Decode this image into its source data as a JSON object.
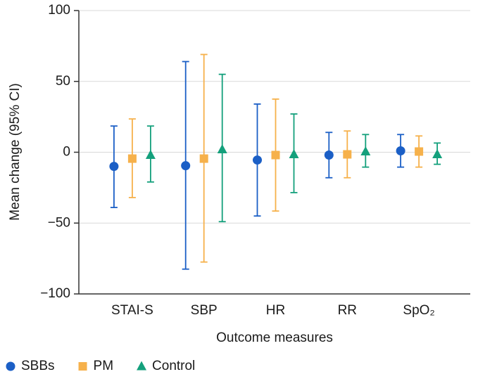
{
  "chart_data": {
    "type": "errorbar",
    "x_label": "Outcome measures",
    "y_label": "Mean change (95% CI)",
    "categories": [
      "STAI-S",
      "SBP",
      "HR",
      "RR",
      "SpO₂"
    ],
    "ylim": [
      -100,
      100
    ],
    "yticks": [
      {
        "value": -100,
        "label": "−100"
      },
      {
        "value": -50,
        "label": "−50"
      },
      0,
      50,
      100
    ],
    "grid": true,
    "legend": "bottom",
    "series": [
      {
        "name": "SBBs",
        "color": "#1b5fc6",
        "marker": "circle",
        "values": [
          -10,
          -9.5,
          -5.5,
          -2,
          1
        ],
        "lower": [
          -39,
          -82.5,
          -45,
          -18,
          -10.5
        ],
        "upper": [
          18.5,
          64,
          34,
          14,
          12.5
        ]
      },
      {
        "name": "PM",
        "color": "#f6b14b",
        "marker": "square",
        "values": [
          -4.5,
          -4.5,
          -2,
          -1.5,
          0.5
        ],
        "lower": [
          -32,
          -77.5,
          -41.5,
          -18,
          -10.5
        ],
        "upper": [
          23.5,
          69,
          37.5,
          15,
          11.5
        ]
      },
      {
        "name": "Control",
        "color": "#14a07c",
        "marker": "triangle",
        "values": [
          -2,
          2,
          -1.5,
          0.5,
          -1.5
        ],
        "lower": [
          -21,
          -49,
          -28.5,
          -10.5,
          -8.5
        ],
        "upper": [
          18.5,
          55,
          27,
          12.5,
          6.5
        ]
      }
    ]
  }
}
